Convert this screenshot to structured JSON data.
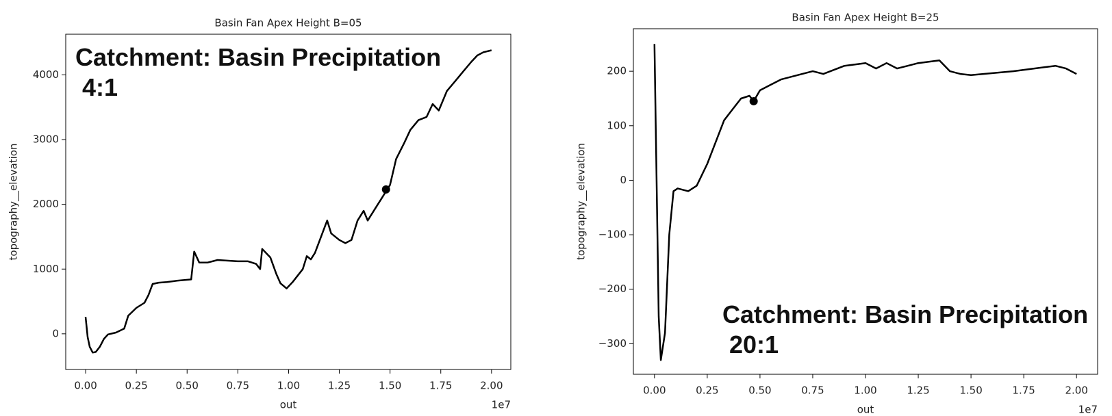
{
  "chart_data": [
    {
      "type": "line",
      "title": "Basin Fan Apex Height B=05",
      "xlabel": "out",
      "ylabel": "topography__elevation",
      "x_offset_label": "1e7",
      "annotation": [
        "Catchment: Basin Precipitation",
        "4:1"
      ],
      "xlim": [
        -0.098,
        2.095
      ],
      "ylim": [
        -551,
        4628
      ],
      "xticks": [
        {
          "value": 0,
          "label": "0.00"
        },
        {
          "value": 0.25,
          "label": "0.25"
        },
        {
          "value": 0.5,
          "label": "0.50"
        },
        {
          "value": 0.75,
          "label": "0.75"
        },
        {
          "value": 1,
          "label": "1.00"
        },
        {
          "value": 1.25,
          "label": "1.25"
        },
        {
          "value": 1.5,
          "label": "1.50"
        },
        {
          "value": 1.75,
          "label": "1.75"
        },
        {
          "value": 2,
          "label": "2.00"
        }
      ],
      "yticks": [
        0,
        1000,
        2000,
        3000,
        4000
      ],
      "series": [
        {
          "style": "line",
          "color": "#000000",
          "x": [
            0.0,
            0.01,
            0.02,
            0.035,
            0.05,
            0.07,
            0.09,
            0.11,
            0.15,
            0.19,
            0.21,
            0.25,
            0.29,
            0.31,
            0.33,
            0.36,
            0.4,
            0.45,
            0.52,
            0.535,
            0.56,
            0.6,
            0.65,
            0.75,
            0.8,
            0.84,
            0.86,
            0.87,
            0.91,
            0.94,
            0.96,
            0.99,
            1.02,
            1.07,
            1.09,
            1.11,
            1.13,
            1.16,
            1.19,
            1.21,
            1.25,
            1.28,
            1.31,
            1.34,
            1.37,
            1.39,
            1.42,
            1.46,
            1.5,
            1.53,
            1.57,
            1.6,
            1.64,
            1.68,
            1.71,
            1.74,
            1.78,
            1.82,
            1.86,
            1.9,
            1.93,
            1.96,
            2.0
          ],
          "values": [
            260,
            -50,
            -200,
            -290,
            -280,
            -200,
            -80,
            -10,
            20,
            80,
            280,
            400,
            480,
            600,
            770,
            790,
            800,
            820,
            840,
            1270,
            1100,
            1100,
            1140,
            1120,
            1120,
            1080,
            1000,
            1310,
            1180,
            920,
            780,
            700,
            800,
            1000,
            1200,
            1150,
            1250,
            1500,
            1750,
            1550,
            1450,
            1400,
            1450,
            1750,
            1900,
            1750,
            1900,
            2100,
            2300,
            2700,
            2950,
            3150,
            3300,
            3350,
            3550,
            3450,
            3750,
            3900,
            4050,
            4200,
            4300,
            4350,
            4380
          ]
        },
        {
          "style": "point",
          "color": "#000000",
          "x": [
            1.48
          ],
          "values": [
            2230
          ]
        }
      ]
    },
    {
      "type": "line",
      "title": "Basin Fan Apex Height B=25",
      "xlabel": "out",
      "ylabel": "topography__elevation",
      "x_offset_label": "1e7",
      "annotation": [
        "Catchment: Basin Precipitation",
        "20:1"
      ],
      "xlim": [
        -0.1,
        2.1
      ],
      "ylim": [
        -356,
        278
      ],
      "xticks": [
        {
          "value": 0,
          "label": "0.00"
        },
        {
          "value": 0.25,
          "label": "0.25"
        },
        {
          "value": 0.5,
          "label": "0.50"
        },
        {
          "value": 0.75,
          "label": "0.75"
        },
        {
          "value": 1,
          "label": "1.00"
        },
        {
          "value": 1.25,
          "label": "1.25"
        },
        {
          "value": 1.5,
          "label": "1.50"
        },
        {
          "value": 1.75,
          "label": "1.75"
        },
        {
          "value": 2,
          "label": "2.00"
        }
      ],
      "yticks": [
        {
          "value": -300,
          "label": "−300"
        },
        {
          "value": -200,
          "label": "−200"
        },
        {
          "value": -100,
          "label": "−100"
        },
        0,
        100,
        200
      ],
      "series": [
        {
          "style": "line",
          "color": "#000000",
          "x": [
            0.0,
            0.02,
            0.03,
            0.05,
            0.07,
            0.09,
            0.11,
            0.16,
            0.2,
            0.25,
            0.29,
            0.33,
            0.37,
            0.41,
            0.45,
            0.47,
            0.5,
            0.55,
            0.6,
            0.7,
            0.75,
            0.8,
            0.9,
            1.0,
            1.05,
            1.1,
            1.15,
            1.2,
            1.25,
            1.35,
            1.4,
            1.45,
            1.5,
            1.7,
            1.8,
            1.9,
            1.95,
            2.0
          ],
          "values": [
            250,
            -250,
            -330,
            -280,
            -100,
            -20,
            -15,
            -20,
            -10,
            30,
            70,
            110,
            130,
            150,
            155,
            145,
            165,
            175,
            185,
            195,
            200,
            195,
            210,
            215,
            205,
            215,
            205,
            210,
            215,
            220,
            200,
            195,
            193,
            200,
            205,
            210,
            205,
            195
          ]
        },
        {
          "style": "point",
          "color": "#000000",
          "x": [
            0.47
          ],
          "values": [
            145
          ]
        }
      ]
    }
  ]
}
